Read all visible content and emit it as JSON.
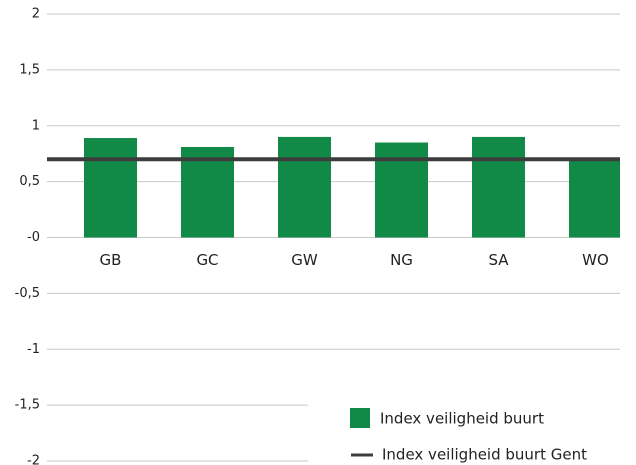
{
  "chart_data": {
    "type": "bar",
    "categories": [
      "GB",
      "GC",
      "GW",
      "NG",
      "SA",
      "WO"
    ],
    "series": [
      {
        "name": "Index veiligheid buurt",
        "color": "#108a46",
        "values": [
          0.89,
          0.81,
          0.9,
          0.85,
          0.9,
          0.7
        ]
      }
    ],
    "reference_line": {
      "name": "Index veiligheid buurt Gent",
      "color": "#3c3c3c",
      "value": 0.7
    },
    "ylim": [
      -2,
      2
    ],
    "yticks": [
      {
        "value": -2,
        "label": "-2"
      },
      {
        "value": -1.5,
        "label": "-1,5"
      },
      {
        "value": -1,
        "label": "-1"
      },
      {
        "value": -0.5,
        "label": "-0,5"
      },
      {
        "value": 0,
        "label": "-0"
      },
      {
        "value": 0.5,
        "label": "0,5"
      },
      1,
      {
        "value": 1.5,
        "label": "1,5"
      },
      2
    ],
    "grid": true,
    "legend": "bottom-right"
  }
}
